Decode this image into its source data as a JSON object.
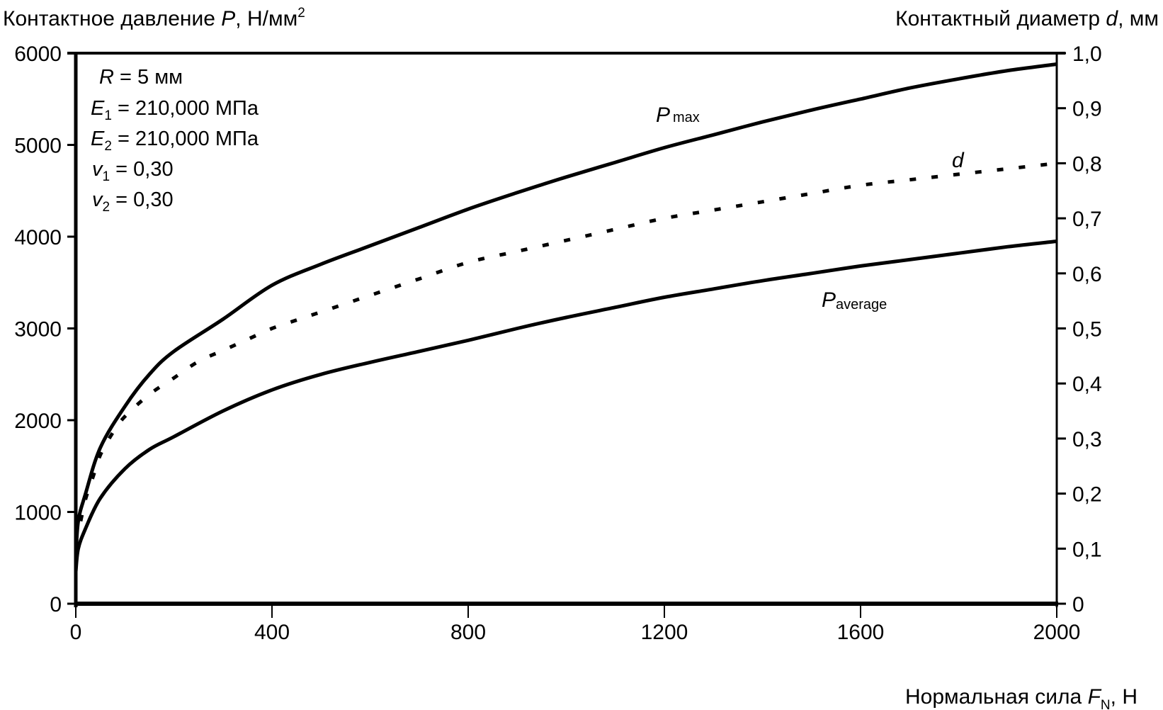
{
  "chart_data": {
    "type": "line",
    "title": "",
    "xlabel": "Нормальная сила",
    "xlabel_symbol": "F",
    "xlabel_subscript": "N",
    "xlabel_unit": ", Н",
    "ylabel_left": "Контактное давление",
    "ylabel_left_symbol": "P",
    "ylabel_left_unit": ", Н/мм",
    "ylabel_left_sup": "2",
    "ylabel_right": "Контактный диаметр",
    "ylabel_right_symbol": "d",
    "ylabel_right_unit": ", мм",
    "xlim": [
      0,
      2000
    ],
    "ylim_left": [
      0,
      6000
    ],
    "ylim_right": [
      0,
      1.0
    ],
    "x_ticks": [
      "0",
      "400",
      "800",
      "1200",
      "1600",
      "2000"
    ],
    "x_tick_values": [
      0,
      400,
      800,
      1200,
      1600,
      2000
    ],
    "y_left_ticks": [
      "0",
      "1000",
      "2000",
      "3000",
      "4000",
      "5000",
      "6000"
    ],
    "y_left_tick_values": [
      0,
      1000,
      2000,
      3000,
      4000,
      5000,
      6000
    ],
    "y_right_ticks": [
      "0",
      "0,1",
      "0,2",
      "0,3",
      "0,4",
      "0,5",
      "0,6",
      "0,7",
      "0,8",
      "0,9",
      "1,0"
    ],
    "y_right_tick_values": [
      0,
      0.1,
      0.2,
      0.3,
      0.4,
      0.5,
      0.6,
      0.7,
      0.8,
      0.9,
      1.0
    ],
    "grid": false,
    "series": [
      {
        "name": "P_max",
        "label_main": "P",
        "label_sub": "max",
        "axis": "left",
        "style": "solid",
        "x": [
          0,
          5,
          20,
          50,
          100,
          150,
          200,
          300,
          400,
          500,
          600,
          700,
          800,
          900,
          1000,
          1100,
          1200,
          1300,
          1400,
          1500,
          1600,
          1700,
          1800,
          1900,
          2000
        ],
        "y": [
          500,
          900,
          1200,
          1700,
          2150,
          2500,
          2750,
          3100,
          3470,
          3700,
          3900,
          4100,
          4300,
          4480,
          4650,
          4810,
          4970,
          5110,
          5250,
          5380,
          5500,
          5620,
          5720,
          5810,
          5880
        ]
      },
      {
        "name": "P_average",
        "label_main": "P",
        "label_sub": "average",
        "axis": "left",
        "style": "solid",
        "x": [
          0,
          5,
          20,
          50,
          100,
          150,
          200,
          300,
          400,
          500,
          600,
          700,
          800,
          900,
          1000,
          1100,
          1200,
          1300,
          1400,
          1500,
          1600,
          1700,
          1800,
          1900,
          2000
        ],
        "y": [
          350,
          600,
          820,
          1150,
          1470,
          1680,
          1820,
          2100,
          2330,
          2500,
          2630,
          2750,
          2870,
          3000,
          3120,
          3230,
          3340,
          3430,
          3520,
          3600,
          3680,
          3750,
          3820,
          3890,
          3950
        ]
      },
      {
        "name": "d",
        "label_main": "d",
        "label_sub": "",
        "axis": "right",
        "style": "dotted",
        "x": [
          10,
          20,
          35,
          50,
          75,
          100,
          150,
          200,
          250,
          300,
          350,
          400,
          450,
          500,
          600,
          700,
          800,
          900,
          1000,
          1100,
          1200,
          1300,
          1400,
          1500,
          1600,
          1700,
          1800,
          1900,
          2000
        ],
        "y": [
          0.15,
          0.19,
          0.23,
          0.27,
          0.31,
          0.34,
          0.38,
          0.41,
          0.44,
          0.46,
          0.48,
          0.5,
          0.515,
          0.53,
          0.56,
          0.59,
          0.62,
          0.64,
          0.66,
          0.68,
          0.7,
          0.715,
          0.73,
          0.745,
          0.76,
          0.77,
          0.78,
          0.79,
          0.8
        ]
      }
    ],
    "annotations": {
      "params": [
        {
          "symbol": "R",
          "sub": "",
          "text": " = 5 мм"
        },
        {
          "symbol": "E",
          "sub": "1",
          "text": " = 210,000 МПа"
        },
        {
          "symbol": "E",
          "sub": "2",
          "text": " = 210,000 МПа"
        },
        {
          "symbol": "v",
          "sub": "1",
          "text": " = 0,30"
        },
        {
          "symbol": "v",
          "sub": "2",
          "text": " = 0,30"
        }
      ]
    }
  }
}
